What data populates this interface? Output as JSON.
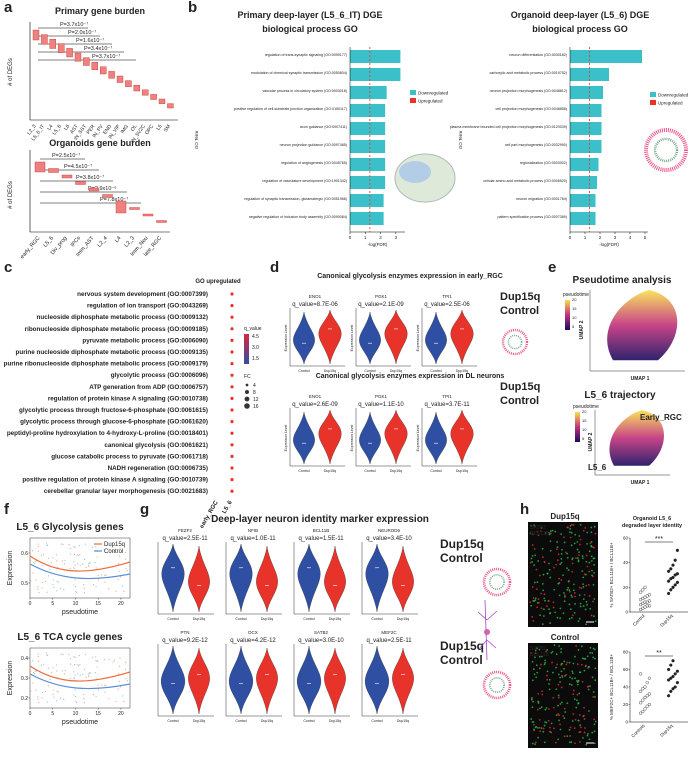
{
  "panel_labels": [
    "a",
    "b",
    "c",
    "d",
    "e",
    "f",
    "g",
    "h"
  ],
  "a": {
    "primary_title": "Primary gene burden",
    "primary_p": [
      "P=3.7x10⁻⁷",
      "P=2.0x10⁻⁷",
      "P=1.6x10⁻⁷",
      "P=3.4x10⁻⁷",
      "P=3.7x10⁻⁷"
    ],
    "primary_categories": [
      "L2_3",
      "L5_6_IT",
      "L4",
      "L5_6",
      "L6",
      "AST",
      "IN_SST",
      "PER",
      "IN_PV",
      "END",
      "IN_VIP",
      "IMG",
      "OL",
      "IN_SV2C",
      "OPC",
      "L5",
      "SM"
    ],
    "y_label": "# of DEGs",
    "organoid_title": "Organoids gene burden",
    "organoid_p": [
      "P=2.5x10⁻⁷",
      "P=4.5x10⁻⁷",
      "P=3.8x10⁻⁷",
      "P=2.9x10⁻⁶",
      "P=7.8x10⁻⁷"
    ],
    "organoid_categories": [
      "early_RGC",
      "L5_6",
      "Div_prog",
      "IPCs",
      "Imm_AST",
      "L2_4",
      "L4",
      "L2_3",
      "Imm_Neu",
      "late_RGC"
    ]
  },
  "b": {
    "legend": [
      "Downregulated",
      "Upregulated"
    ],
    "colors": [
      "#3bbfc8",
      "#e8332a"
    ],
    "x_label": "-log(FDR)",
    "y_label": "GO Term",
    "left": {
      "title": [
        "Primary deep-layer (L5_6_IT) DGE",
        "biological process GO"
      ],
      "xlim": [
        0,
        3.6
      ],
      "xticks": [
        0,
        1,
        2,
        3
      ],
      "terms": [
        "regulation of trans-synaptic signaling (GO:0099177)",
        "modulation of chemical synaptic transmission (GO:0050804)",
        "vascular process in circulatory system (GO:0003018)",
        "positive regulation of cell-substrate junction organization (GO:0150117)",
        "axon guidance (GO:0007411)",
        "neuron projection guidance (GO:0097485)",
        "regulation of angiogenesis (GO:0045765)",
        "regulation of vasculature development (GO:1901342)",
        "regulation of synaptic transmission, glutamatergic (GO:0051966)",
        "negative regulation of inclusion body assembly (GO:0090084)"
      ],
      "values": [
        3.3,
        3.3,
        2.4,
        2.3,
        2.3,
        2.3,
        2.3,
        2.3,
        2.2,
        2.2
      ]
    },
    "right": {
      "title": [
        "Organoid deep-layer (L5_6) DGE",
        "biological process GO"
      ],
      "xlim": [
        0,
        5.2
      ],
      "xticks": [
        0,
        1,
        2,
        3,
        4,
        5
      ],
      "terms": [
        "neuron differentiation (GO:0030182)",
        "carboxylic acid metabolic process (GO:0019752)",
        "neuron projection morphogenesis (GO:0048812)",
        "cell projection morphogenesis (GO:0048858)",
        "plasma membrane bounded cell projection morphogenesis (GO:0120039)",
        "cell part morphogenesis (GO:0032990)",
        "regionalization (GO:0003002)",
        "cellular amino acid metabolic process (GO:0006520)",
        "neuron migration (GO:0001764)",
        "pattern specification process (GO:0007389)"
      ],
      "values": [
        4.8,
        2.6,
        2.2,
        2.1,
        2.1,
        2.1,
        1.9,
        1.8,
        1.7,
        1.7
      ]
    }
  },
  "c": {
    "title": "GO upregulated",
    "terms": [
      "nervous system development (GO:0007399)",
      "regulation of ion transport (GO:0043269)",
      "nucleoside diphosphate metabolic process (GO:0009132)",
      "ribonucleoside diphosphate metabolic process (GO:0009185)",
      "pyruvate metabolic process (GO:0006090)",
      "purine nucleoside diphosphate metabolic process (GO:0009135)",
      "purine ribonucleoside diphosphate metabolic process (GO:0009179)",
      "glycolytic process (GO:0006096)",
      "ATP generation from ADP (GO:0006757)",
      "regulation of protein kinase A signaling (GO:0010738)",
      "glycolytic process through fructose-6-phosphate (GO:0061615)",
      "glycolytic process through glucose-6-phosphate (GO:0061620)",
      "peptidyl-proline hydroxylation to 4-hydroxy-L-proline (GO:0018401)",
      "canonical glycolysis (GO:0061621)",
      "glucose catabolic process to pyruvate (GO:0061718)",
      "NADH regeneration (GO:0006735)",
      "positive regulation of protein kinase A signaling (GO:0010739)",
      "cerebellar granular layer morphogenesis (GO:0021683)"
    ],
    "categories": [
      "early_RGC",
      "L5_6"
    ],
    "q_title": "q_value",
    "q_labels": [
      "4.5",
      "3.0",
      "1.5"
    ],
    "fc_title": "FC",
    "fc_sizes": [
      4,
      8,
      12,
      16
    ]
  },
  "d": {
    "title1": "Canonical glycolysis enzymes expression in early_RGC",
    "title2": "Canonical glycolysis enzymes expression in DL neurons",
    "genes": [
      "ENO1",
      "PGK1",
      "TPI1"
    ],
    "q1": [
      "q_value=8.7E-06",
      "q_value=2.1E-09",
      "q_value=2.5E-06"
    ],
    "q2": [
      "q_value=2.6E-09",
      "q_value=1.1E-10",
      "q_value=3.7E-11"
    ],
    "y_label": "Expression Level",
    "groups": [
      "Control",
      "Dup15q"
    ],
    "legend": [
      "Dup15q",
      "Control"
    ],
    "colors": [
      "#e8332a",
      "#2f4fa3"
    ]
  },
  "e": {
    "title1": "Pseudotime analysis",
    "title2": "L5_6 trajectory",
    "colorbar_label": "pseudotime",
    "colorbar_ticks": [
      5,
      10,
      15,
      20
    ],
    "x_label": "UMAP 1",
    "y_label": "UMAP 2",
    "annotations": [
      "Early_RGC",
      "L5_6"
    ]
  },
  "f": {
    "title1": "L5_6 Glycolysis genes",
    "title2": "L5_6 TCA cycle genes",
    "legend": [
      "Dup15q",
      "Control"
    ],
    "y_label": "Expression",
    "x_label": "pseudotime",
    "xlim": [
      0,
      22
    ],
    "xticks": [
      0,
      5,
      10,
      15,
      20
    ],
    "ylim1": [
      0.45,
      0.65
    ],
    "yticks1": [
      0.5,
      0.6
    ],
    "ylim2": [
      0.15,
      0.45
    ],
    "yticks2": [
      0.2,
      0.3,
      0.4
    ]
  },
  "g": {
    "title": "Deep-layer neuron identity marker expression",
    "genes": [
      "FEZF2",
      "NFIB",
      "BCL11B",
      "NEUROD6",
      "PTN",
      "DCX",
      "SATB2",
      "MEF2C"
    ],
    "q": [
      "q_value=2.5E-11",
      "q_value=1.0E-11",
      "q_value=1.5E-11",
      "q_value=3.4E-10",
      "q_value=9.2E-12",
      "q_value=4.2E-12",
      "q_value=3.0E-10",
      "q_value=2.5E-11"
    ],
    "legend": [
      "Dup15q",
      "Control"
    ]
  },
  "h": {
    "image_titles": [
      "Dup15q",
      "Control"
    ],
    "stains": [
      "SATB2",
      "BCL11B"
    ],
    "plot_title": [
      "Organoid L5_6",
      "degraded layer identity"
    ],
    "top": {
      "y_label": "% SATB2+ BCL11B+ / BCL11B+",
      "categories": [
        "Control",
        "Dup15q"
      ],
      "significance": "***",
      "ylim": [
        0,
        60
      ],
      "yticks": [
        0,
        20,
        40,
        60
      ],
      "series": [
        {
          "name": "Control",
          "values": [
            2,
            3,
            4,
            5,
            5,
            6,
            7,
            8,
            8,
            9,
            10,
            11,
            12,
            13,
            14,
            16,
            18,
            20
          ]
        },
        {
          "name": "Dup15q",
          "values": [
            15,
            18,
            20,
            22,
            24,
            25,
            27,
            28,
            30,
            31,
            33,
            35,
            38,
            42,
            50
          ]
        }
      ]
    },
    "bottom": {
      "y_label": "% MEF2C+ BCL11B+ / BCL11B+",
      "categories": [
        "Controls",
        "Dup15q"
      ],
      "significance": "**",
      "ylim": [
        0,
        80
      ],
      "yticks": [
        0,
        20,
        40,
        60,
        80
      ],
      "series": [
        {
          "name": "Controls",
          "values": [
            10,
            12,
            15,
            18,
            20,
            22,
            25,
            28,
            30,
            32,
            35,
            38,
            40,
            45,
            50,
            55
          ]
        },
        {
          "name": "Dup15q",
          "values": [
            30,
            35,
            38,
            40,
            45,
            48,
            50,
            52,
            55,
            58,
            60,
            65,
            70
          ]
        }
      ]
    }
  }
}
